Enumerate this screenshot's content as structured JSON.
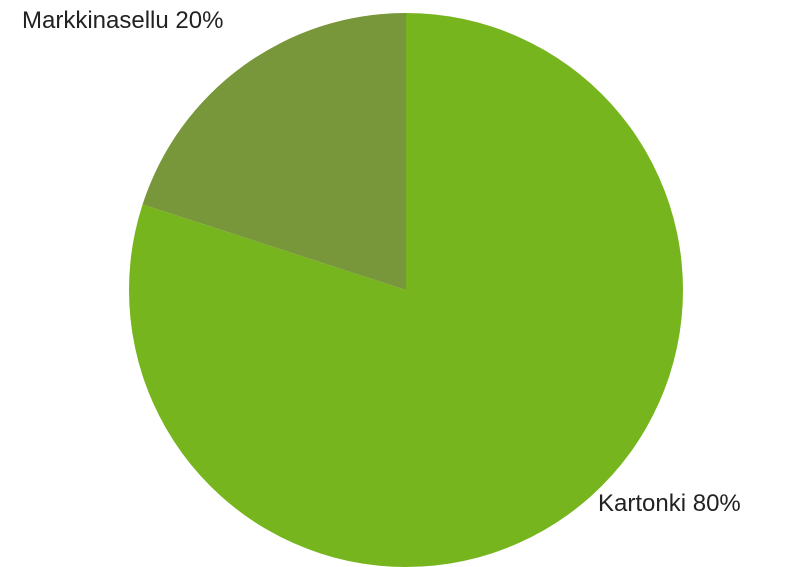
{
  "chart_data": {
    "type": "pie",
    "categories": [
      "Kartonki",
      "Markkinasellu"
    ],
    "values": [
      80,
      20
    ],
    "value_labels": [
      "80%",
      "20%"
    ],
    "colors": [
      "#77b51e",
      "#78963a"
    ]
  }
}
